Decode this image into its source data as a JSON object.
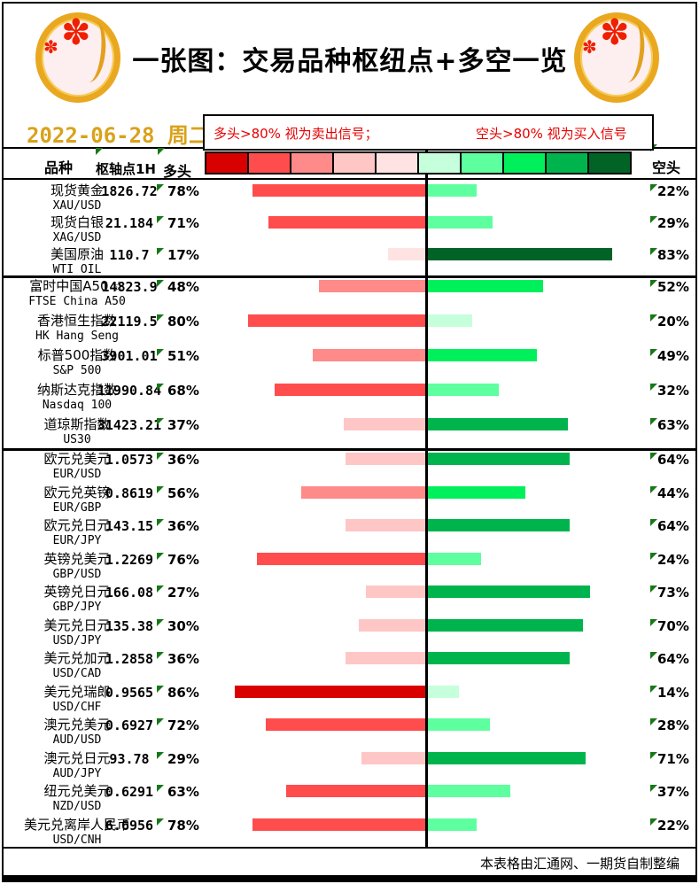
{
  "header": {
    "title": "一张图：交易品种枢纽点+多空一览",
    "date": "2022-06-28 周二",
    "legend_long": "多头>80% 视为卖出信号；",
    "legend_short": "空头>80% 视为买入信号",
    "logo_icon": "plum-blossom-gold-medallion",
    "logo_flower_glyph": "✽"
  },
  "table": {
    "columns": {
      "instrument": "品种",
      "pivot": "枢轴点1H",
      "long": "多头",
      "short": "空头"
    }
  },
  "scale_colors": [
    "#d90000",
    "#ff4d4d",
    "#ff8a8a",
    "#ffc6c6",
    "#ffe3e3",
    "#c6ffdc",
    "#5eff9e",
    "#00f05c",
    "#00b44d",
    "#016326"
  ],
  "accent_colors": {
    "date_gold": "#d9a21b",
    "legend_red": "#e60000",
    "marker_green": "#187818"
  },
  "footer": {
    "credit": "本表格由汇通网、一期货自制整编"
  },
  "chart_data": {
    "type": "bar",
    "orientation": "horizontal-diverging",
    "title": "一张图：交易品种枢纽点+多空一览",
    "date": "2022-06-28 周二",
    "series": [
      "多头",
      "空头"
    ],
    "value_range": [
      0,
      100
    ],
    "legend_position": "top",
    "color_rule": "bar color = 20%-quintile of value mapped onto 10-step red(long)/green(short) scale",
    "rows": [
      {
        "name": "现货黄金",
        "code": "XAU/USD",
        "pivot": "1826.72",
        "long": 78,
        "short": 22,
        "group": "commodities"
      },
      {
        "name": "现货白银",
        "code": "XAG/USD",
        "pivot": "21.184",
        "long": 71,
        "short": 29,
        "group": "commodities"
      },
      {
        "name": "美国原油",
        "code": "WTI OIL",
        "pivot": "110.7",
        "long": 17,
        "short": 83,
        "group": "commodities"
      },
      {
        "name": "富时中国A50 ☆",
        "code": "FTSE China A50",
        "pivot": "14823.9",
        "long": 48,
        "short": 52,
        "group": "indices"
      },
      {
        "name": "香港恒生指数",
        "code": "HK Hang Seng",
        "pivot": "22119.5",
        "long": 80,
        "short": 20,
        "group": "indices"
      },
      {
        "name": "标普500指数",
        "code": "S&P 500",
        "pivot": "3901.01",
        "long": 51,
        "short": 49,
        "group": "indices"
      },
      {
        "name": "纳斯达克指数",
        "code": "Nasdaq 100",
        "pivot": "11990.84",
        "long": 68,
        "short": 32,
        "group": "indices"
      },
      {
        "name": "道琼斯指数",
        "code": "US30",
        "pivot": "31423.21",
        "long": 37,
        "short": 63,
        "group": "indices"
      },
      {
        "name": "欧元兑美元",
        "code": "EUR/USD",
        "pivot": "1.0573",
        "long": 36,
        "short": 64,
        "group": "forex"
      },
      {
        "name": "欧元兑英镑",
        "code": "EUR/GBP",
        "pivot": "0.8619",
        "long": 56,
        "short": 44,
        "group": "forex"
      },
      {
        "name": "欧元兑日元",
        "code": "EUR/JPY",
        "pivot": "143.15",
        "long": 36,
        "short": 64,
        "group": "forex"
      },
      {
        "name": "英镑兑美元",
        "code": "GBP/USD",
        "pivot": "1.2269",
        "long": 76,
        "short": 24,
        "group": "forex"
      },
      {
        "name": "英镑兑日元",
        "code": "GBP/JPY",
        "pivot": "166.08",
        "long": 27,
        "short": 73,
        "group": "forex"
      },
      {
        "name": "美元兑日元",
        "code": "USD/JPY",
        "pivot": "135.38",
        "long": 30,
        "short": 70,
        "group": "forex"
      },
      {
        "name": "美元兑加元",
        "code": "USD/CAD",
        "pivot": "1.2858",
        "long": 36,
        "short": 64,
        "group": "forex"
      },
      {
        "name": "美元兑瑞郎",
        "code": "USD/CHF",
        "pivot": "0.9565",
        "long": 86,
        "short": 14,
        "group": "forex"
      },
      {
        "name": "澳元兑美元",
        "code": "AUD/USD",
        "pivot": "0.6927",
        "long": 72,
        "short": 28,
        "group": "forex"
      },
      {
        "name": "澳元兑日元",
        "code": "AUD/JPY",
        "pivot": "93.78",
        "long": 29,
        "short": 71,
        "group": "forex"
      },
      {
        "name": "纽元兑美元",
        "code": "NZD/USD",
        "pivot": "0.6291",
        "long": 63,
        "short": 37,
        "group": "forex"
      },
      {
        "name": "美元兑离岸人民币",
        "code": "USD/CNH",
        "pivot": "6.6956",
        "long": 78,
        "short": 22,
        "group": "forex"
      }
    ]
  }
}
